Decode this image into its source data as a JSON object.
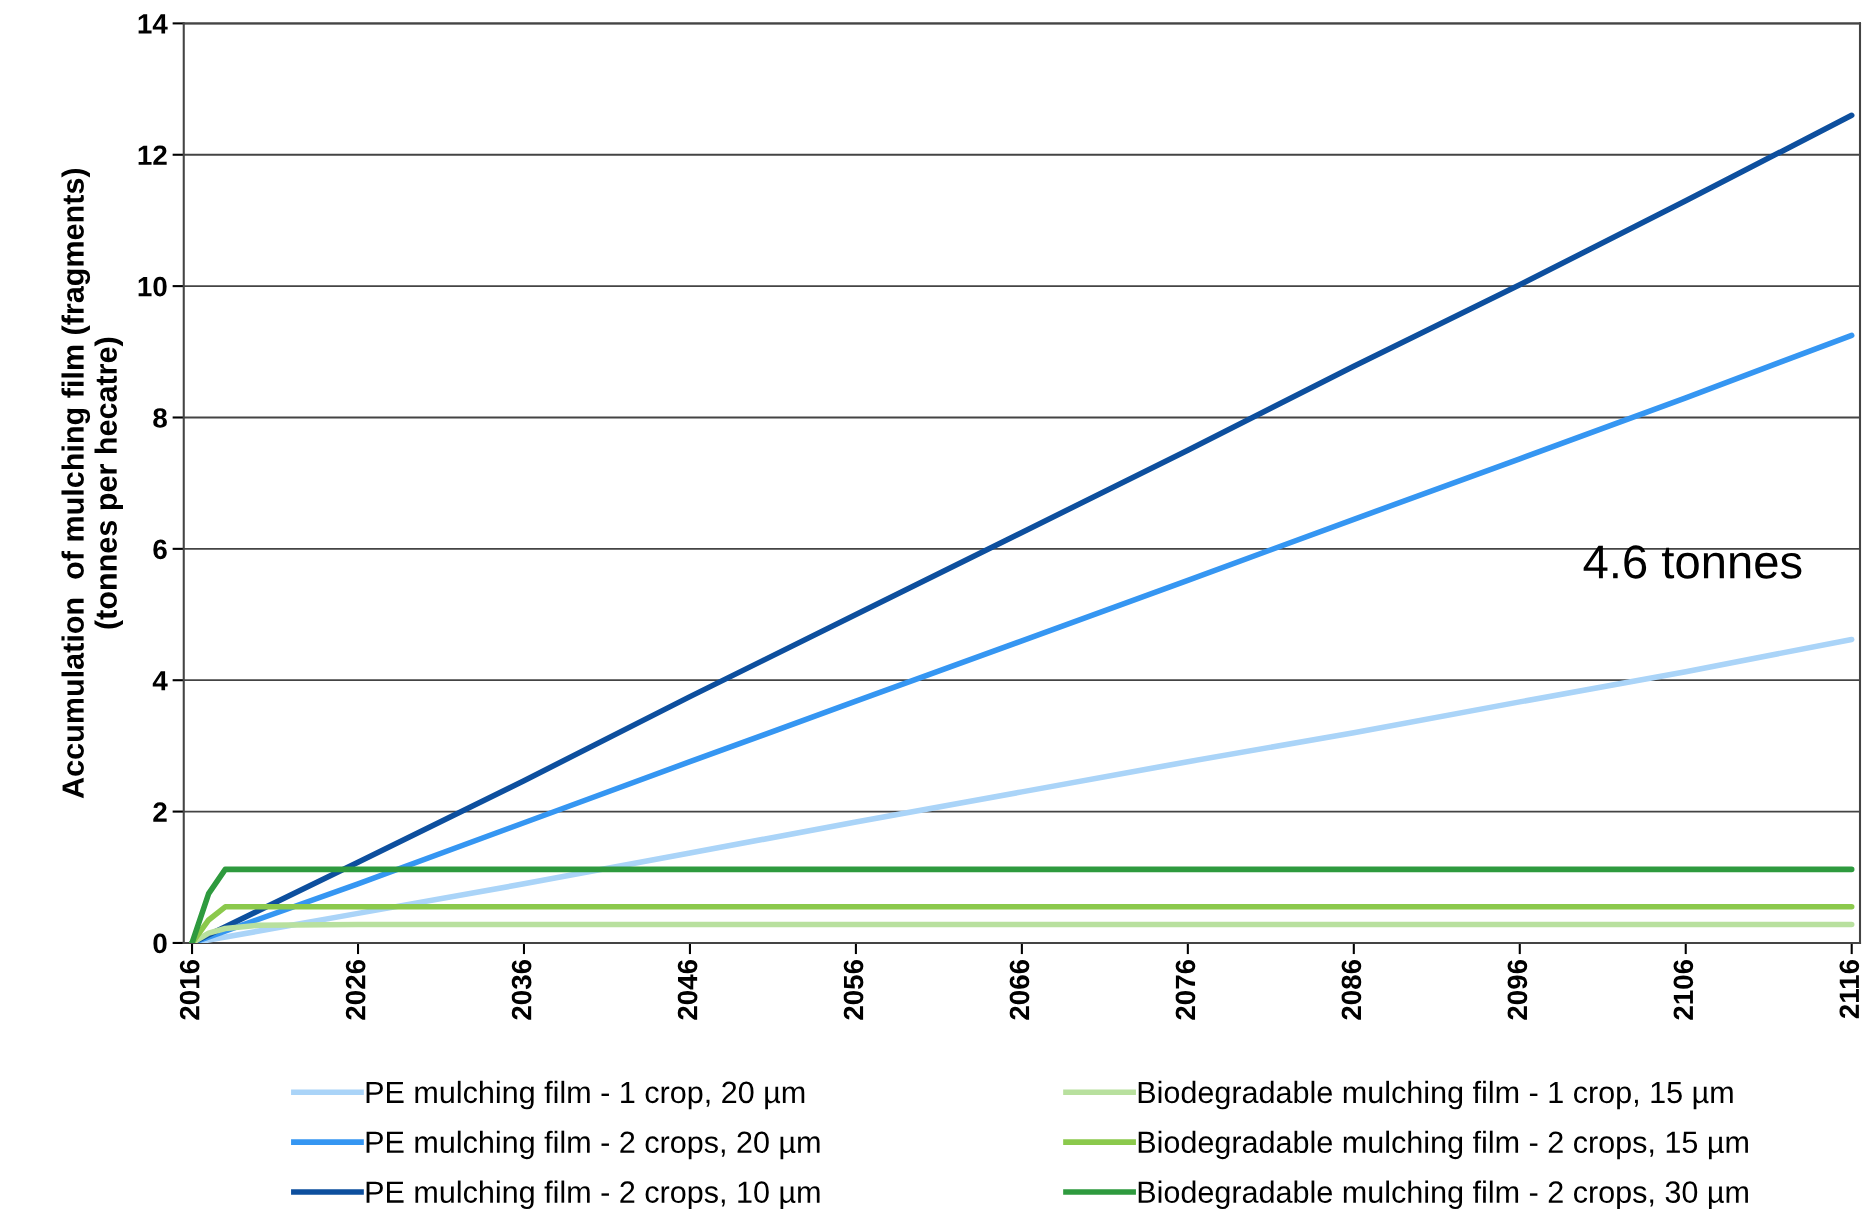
{
  "chart_data": {
    "type": "line",
    "ylabel": "Accumulation  of mulching film (fragments)\n(tonnes per hecatre)",
    "xlim": [
      2015.5,
      2116.5
    ],
    "xticks": [
      2016,
      2026,
      2036,
      2046,
      2056,
      2066,
      2076,
      2086,
      2096,
      2106,
      2116
    ],
    "ylim": [
      0,
      14
    ],
    "yticks": [
      0,
      2,
      4,
      6,
      8,
      10,
      12,
      14
    ],
    "grid": "y",
    "legend": "bottom",
    "marker": "none",
    "line_style": "solid",
    "annotations": [
      {
        "text": "4.6 tonnes",
        "x": 2116,
        "y": 4.6
      }
    ],
    "series": [
      {
        "name": "PE mulching film - 1 crop, 20 µm",
        "color": "#aad4f8",
        "x": [
          2016,
          2026,
          2036,
          2046,
          2056,
          2066,
          2076,
          2086,
          2096,
          2106,
          2116
        ],
        "values": [
          0,
          0.45,
          0.9,
          1.37,
          1.84,
          2.3,
          2.76,
          3.2,
          3.67,
          4.13,
          4.62
        ]
      },
      {
        "name": "PE mulching film - 2 crops, 20 µm",
        "color": "#3596f2",
        "x": [
          2016,
          2026,
          2036,
          2046,
          2056,
          2066,
          2076,
          2086,
          2096,
          2106,
          2116
        ],
        "values": [
          0,
          0.9,
          1.83,
          2.76,
          3.68,
          4.6,
          5.52,
          6.45,
          7.37,
          8.3,
          9.25
        ]
      },
      {
        "name": "PE mulching film - 2 crops, 10 µm",
        "color": "#0d4f9e",
        "x": [
          2016,
          2026,
          2036,
          2046,
          2056,
          2066,
          2076,
          2086,
          2096,
          2106,
          2116
        ],
        "values": [
          0,
          1.23,
          2.47,
          3.75,
          5.0,
          6.25,
          7.5,
          8.78,
          10.02,
          11.3,
          12.6
        ]
      },
      {
        "name": "Biodegradable mulching film - 1 crop, 15 µm",
        "color": "#b8e09e",
        "x": [
          2016,
          2017,
          2018,
          2020,
          2026,
          2116
        ],
        "values": [
          0,
          0.15,
          0.22,
          0.27,
          0.28,
          0.28
        ]
      },
      {
        "name": "Biodegradable mulching film - 2 crops, 15 µm",
        "color": "#8bc94c",
        "x": [
          2016,
          2017,
          2018,
          2116
        ],
        "values": [
          0,
          0.35,
          0.55,
          0.55
        ]
      },
      {
        "name": "Biodegradable mulching film - 2 crops, 30 µm",
        "color": "#2e9a3e",
        "x": [
          2016,
          2017,
          2018,
          2116
        ],
        "values": [
          0,
          0.75,
          1.12,
          1.12
        ]
      }
    ]
  }
}
